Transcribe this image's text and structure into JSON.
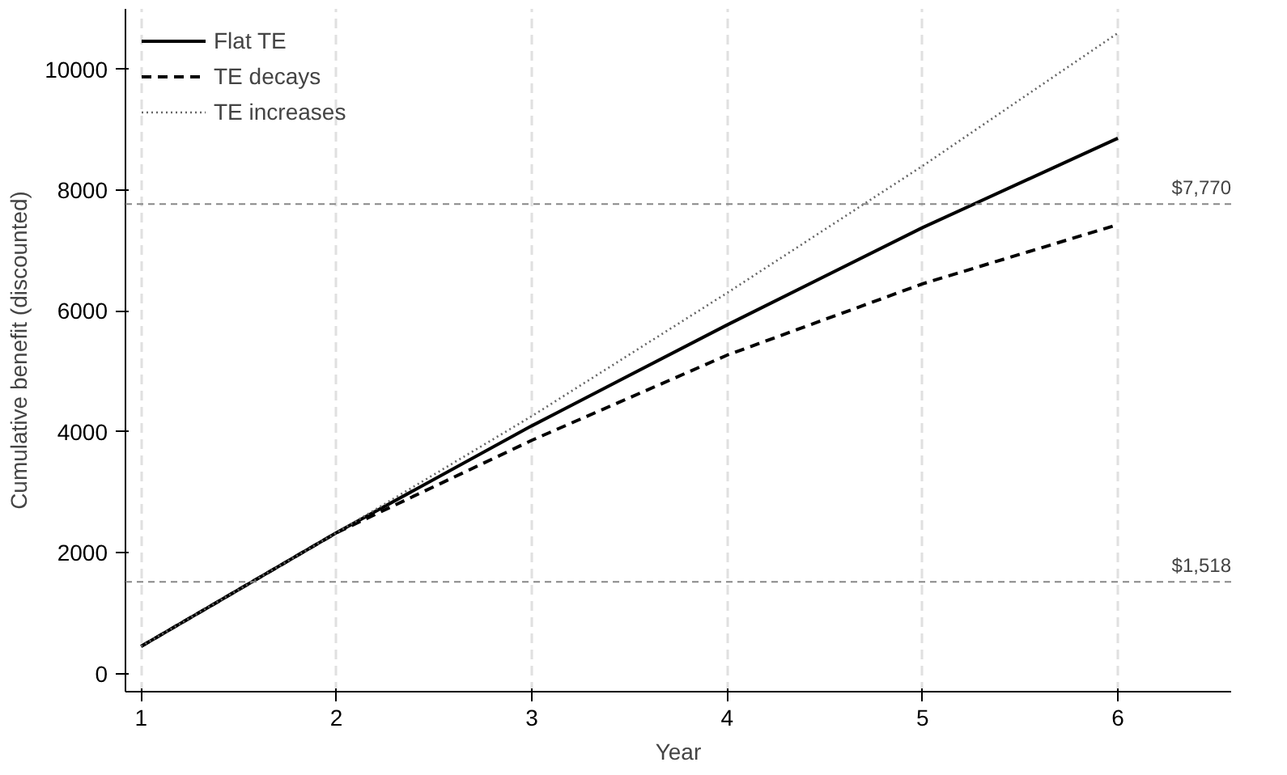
{
  "chart_data": {
    "type": "line",
    "xlabel": "Year",
    "ylabel": "Cumulative benefit (discounted)",
    "x": [
      1,
      2,
      3,
      4,
      5,
      6
    ],
    "series": [
      {
        "name": "Flat TE",
        "color": "#000000",
        "line_style": "solid",
        "values": [
          450,
          2330,
          4100,
          5770,
          7380,
          8860
        ]
      },
      {
        "name": "TE decays",
        "color": "#000000",
        "line_style": "dashed",
        "values": [
          450,
          2330,
          3860,
          5270,
          6450,
          7430
        ]
      },
      {
        "name": "TE increases",
        "color": "#666666",
        "line_style": "dotted",
        "values": [
          450,
          2330,
          4260,
          6300,
          8400,
          10600
        ]
      }
    ],
    "xlim": [
      0.92,
      6.58
    ],
    "ylim": [
      -300,
      11000
    ],
    "xticks": [
      1,
      2,
      3,
      4,
      5,
      6
    ],
    "yticks": [
      0,
      2000,
      4000,
      6000,
      8000,
      10000
    ],
    "ref_lines": [
      {
        "axis": "y",
        "value": 7770,
        "label": "$7,770",
        "color": "#888888",
        "line_style": "dashed"
      },
      {
        "axis": "y",
        "value": 1518,
        "label": "$1,518",
        "color": "#888888",
        "line_style": "dashed"
      }
    ],
    "grid": "x",
    "legend": "top left",
    "marker": "none"
  }
}
